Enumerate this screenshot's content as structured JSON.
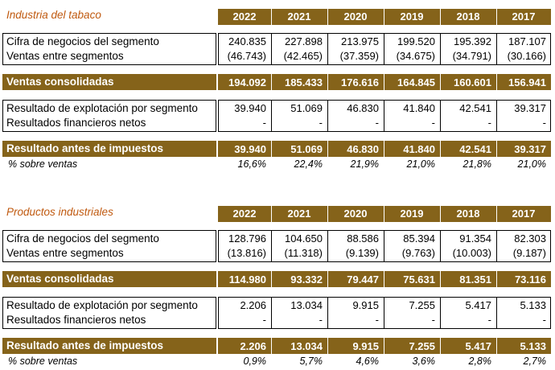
{
  "years": [
    "2022",
    "2021",
    "2020",
    "2019",
    "2018",
    "2017"
  ],
  "sections": [
    {
      "title": "Industria del tabaco",
      "block1": [
        {
          "label": "Cifra de negocios del segmento",
          "values": [
            "240.835",
            "227.898",
            "213.975",
            "199.520",
            "195.392",
            "187.107"
          ]
        },
        {
          "label": "Ventas entre segmentos",
          "values": [
            "(46.743)",
            "(42.465)",
            "(37.359)",
            "(34.675)",
            "(34.791)",
            "(30.166)"
          ]
        }
      ],
      "ventas_consolidadas": {
        "label": "Ventas consolidadas",
        "values": [
          "194.092",
          "185.433",
          "176.616",
          "164.845",
          "160.601",
          "156.941"
        ]
      },
      "block2": [
        {
          "label": "Resultado de explotación por segmento",
          "values": [
            "39.940",
            "51.069",
            "46.830",
            "41.840",
            "42.541",
            "39.317"
          ]
        },
        {
          "label": "Resultados financieros netos",
          "values": [
            "-",
            "-",
            "-",
            "-",
            "-",
            "-"
          ]
        }
      ],
      "resultado_antes": {
        "label": "Resultado antes de impuestos",
        "values": [
          "39.940",
          "51.069",
          "46.830",
          "41.840",
          "42.541",
          "39.317"
        ]
      },
      "pct_ventas": {
        "label": "% sobre ventas",
        "values": [
          "16,6%",
          "22,4%",
          "21,9%",
          "21,0%",
          "21,8%",
          "21,0%"
        ]
      }
    },
    {
      "title": "Productos industriales",
      "block1": [
        {
          "label": "Cifra de negocios del segmento",
          "values": [
            "128.796",
            "104.650",
            "88.586",
            "85.394",
            "91.354",
            "82.303"
          ]
        },
        {
          "label": "Ventas entre segmentos",
          "values": [
            "(13.816)",
            "(11.318)",
            "(9.139)",
            "(9.763)",
            "(10.003)",
            "(9.187)"
          ]
        }
      ],
      "ventas_consolidadas": {
        "label": "Ventas consolidadas",
        "values": [
          "114.980",
          "93.332",
          "79.447",
          "75.631",
          "81.351",
          "73.116"
        ]
      },
      "block2": [
        {
          "label": "Resultado de explotación por segmento",
          "values": [
            "2.206",
            "13.034",
            "9.915",
            "7.255",
            "5.417",
            "5.133"
          ]
        },
        {
          "label": "Resultados financieros netos",
          "values": [
            "-",
            "-",
            "-",
            "-",
            "-",
            "-"
          ]
        }
      ],
      "resultado_antes": {
        "label": "Resultado antes de impuestos",
        "values": [
          "2.206",
          "13.034",
          "9.915",
          "7.255",
          "5.417",
          "5.133"
        ]
      },
      "pct_ventas": {
        "label": "% sobre ventas",
        "values": [
          "0,9%",
          "5,7%",
          "4,6%",
          "3,6%",
          "2,8%",
          "2,7%"
        ]
      }
    }
  ]
}
